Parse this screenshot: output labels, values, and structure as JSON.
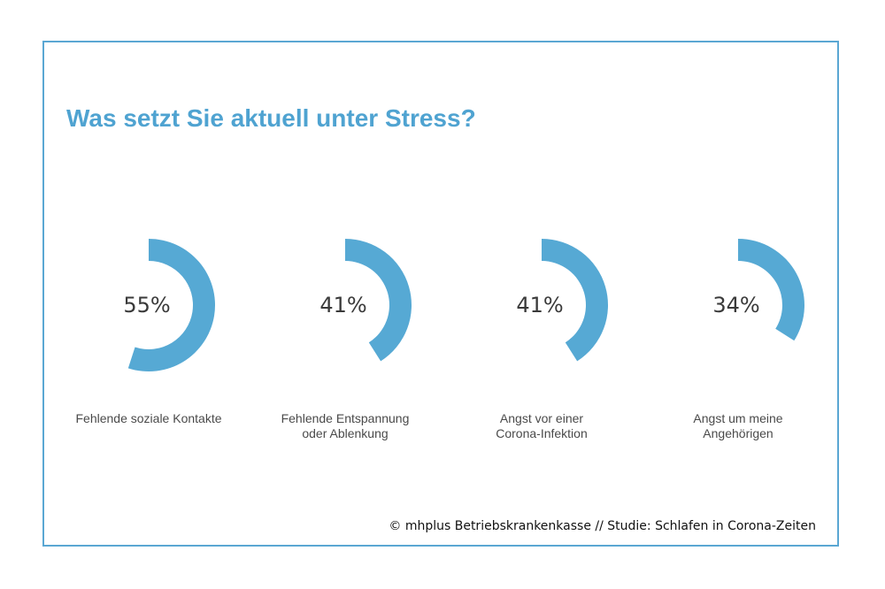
{
  "chart_data": {
    "type": "donut",
    "title": "Was setzt Sie aktuell unter Stress?",
    "categories": [
      "Fehlende soziale Kontakte",
      "Fehlende Entspannung oder Ablenkung",
      "Angst vor einer Corona-Infektion",
      "Angst um meine Angehörigen"
    ],
    "label_lines": [
      [
        "Fehlende soziale Kontakte"
      ],
      [
        "Fehlende Entspannung",
        "oder Ablenkung"
      ],
      [
        "Angst vor einer",
        "Corona-Infektion"
      ],
      [
        "Angst um meine",
        "Angehörigen"
      ]
    ],
    "values": [
      55,
      41,
      41,
      34
    ],
    "value_labels": [
      "55%",
      "41%",
      "41%",
      "34%"
    ],
    "unit": "%",
    "legend": "none",
    "grid": false
  },
  "colors": {
    "arc": "#56a9d4",
    "title": "#4fa3d1",
    "frame": "#5aa7d3"
  },
  "footer": {
    "credit": "© mhplus Betriebskrankenkasse // Studie: Schlafen in Corona-Zeiten"
  }
}
